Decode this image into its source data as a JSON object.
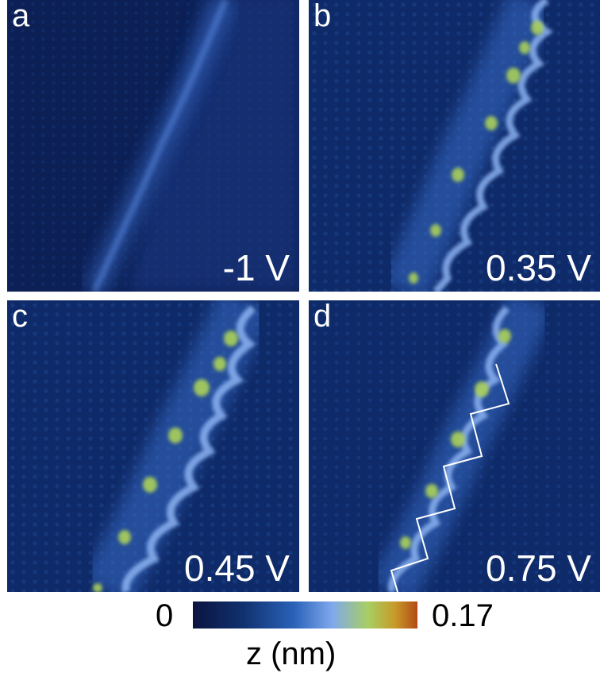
{
  "panels": [
    {
      "letter": "a",
      "bias": "-1 V"
    },
    {
      "letter": "b",
      "bias": "0.35 V"
    },
    {
      "letter": "c",
      "bias": "0.45 V"
    },
    {
      "letter": "d",
      "bias": "0.75 V"
    }
  ],
  "colorbar": {
    "min_label": "0",
    "max_label": "0.17",
    "axis_label": "z (nm)",
    "colors": [
      "#0b1440",
      "#10306e",
      "#2a62b8",
      "#7fa8ee",
      "#a8cf62",
      "#c79a2a",
      "#b24a14"
    ]
  }
}
